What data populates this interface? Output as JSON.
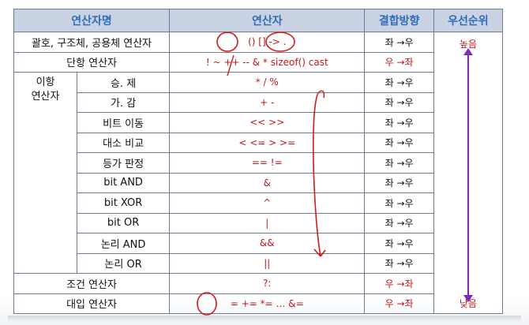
{
  "header": {
    "category": "연산자명",
    "operator": "연산자",
    "associativity": "결합방향",
    "priority": "우선순위"
  },
  "rows": [
    {
      "group": "",
      "name": "괄호, 구조체, 공용체 연산자",
      "ops": "()  []  ->  .",
      "assoc": "좌 →우"
    },
    {
      "group": "",
      "name": "단항 연산자",
      "ops": "!  ~  ++  --  &  *  sizeof()  cast",
      "assoc": "우 →좌"
    },
    {
      "group": "이항\n연산자",
      "name": "승. 제",
      "ops": "*     /     %",
      "assoc": "좌 →우"
    },
    {
      "name": "가. 감",
      "ops": "+     -",
      "assoc": "좌 →우"
    },
    {
      "name": "비트 이동",
      "ops": "<<     >>",
      "assoc": "좌 →우"
    },
    {
      "name": "대소 비교",
      "ops": "<    <=    >    >=",
      "assoc": "좌 →우"
    },
    {
      "name": "등가 판정",
      "ops": "==        !=",
      "assoc": "좌 →우"
    },
    {
      "name": "bit AND",
      "ops": "&",
      "assoc": "좌 →우"
    },
    {
      "name": "bit XOR",
      "ops": "^",
      "assoc": "좌 →우"
    },
    {
      "name": "bit OR",
      "ops": "|",
      "assoc": "좌 →우"
    },
    {
      "name": "논리 AND",
      "ops": "&&",
      "assoc": "좌 →우"
    },
    {
      "name": "논리 OR",
      "ops": "||",
      "assoc": "좌 →우"
    },
    {
      "group": "",
      "name": "조건 연산자",
      "ops": "?:",
      "assoc": "우 →좌"
    },
    {
      "group": "",
      "name": "대입 연산자",
      "ops": "=   +=    *=   …   &=",
      "assoc": "우 →좌"
    }
  ],
  "priority": {
    "high": "높음",
    "low": "낮음",
    "arrow_color": "#7a2bb5"
  },
  "colors": {
    "header_bg": "#c8d2e3",
    "header_text": "#2f6db8",
    "operator_text": "#c0171c",
    "annotation_red": "#d11a1a"
  }
}
